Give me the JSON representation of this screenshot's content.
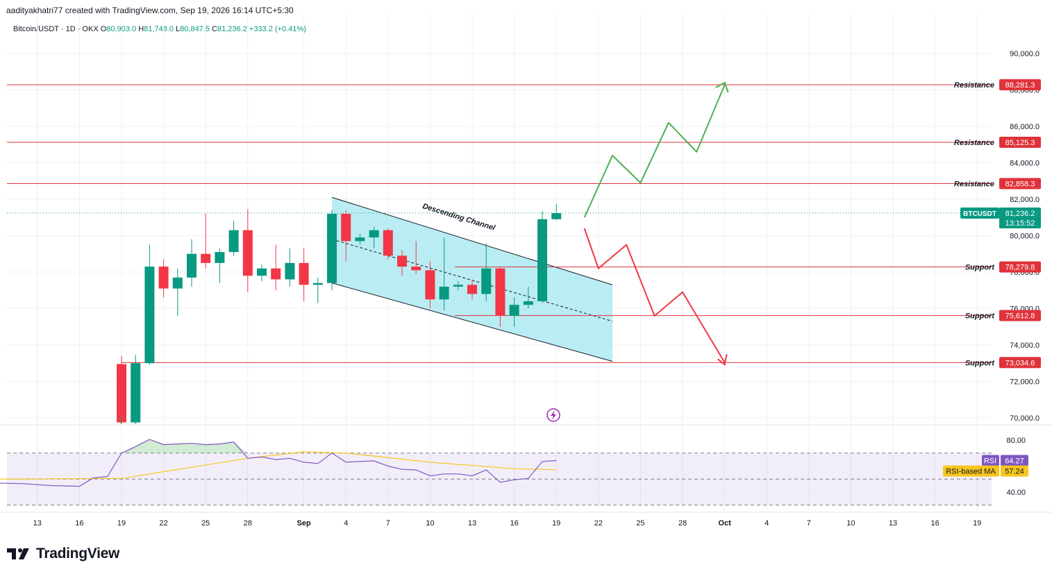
{
  "header": {
    "author_line": "aadityakhatri77 created with TradingView.com, Sep 19, 2026 16:14 UTC+5:30",
    "symbol": "Bitcoin/USDT · 1D · OKX",
    "ohlc": {
      "o_label": "O",
      "o": "80,903.0",
      "h_label": "H",
      "h": "81,748.0",
      "l_label": "L",
      "l": "80,847.5",
      "c_label": "C",
      "c": "81,236.2",
      "change": "+333.2 (+0.41%)"
    }
  },
  "colors": {
    "up": "#089981",
    "down": "#f23645",
    "level_line": "#e0323a",
    "channel_fill": "#b2ebf2",
    "bull_path": "#4caf50",
    "bear_path": "#f23645",
    "rsi_line": "#7e57c2",
    "rsi_ma": "#f7c61e"
  },
  "price_axis": {
    "ticks": [
      "90,000.0",
      "88,000.0",
      "86,000.0",
      "84,000.0",
      "82,000.0",
      "80,000.0",
      "78,000.0",
      "76,000.0",
      "74,000.0",
      "72,000.0",
      "70,000.0"
    ],
    "current": {
      "label": "BTCUSDT",
      "price": "81,236.2",
      "countdown": "13:15:52",
      "value": 81236.2
    }
  },
  "time_axis": [
    "13",
    "16",
    "19",
    "22",
    "25",
    "28",
    "Sep",
    "4",
    "7",
    "10",
    "13",
    "16",
    "19",
    "22",
    "25",
    "28",
    "Oct",
    "4",
    "7",
    "10",
    "13",
    "16",
    "19"
  ],
  "levels": [
    {
      "label": "Resistance",
      "value": 88281.3,
      "text": "88,281.3"
    },
    {
      "label": "Resistance",
      "value": 85125.3,
      "text": "85,125.3"
    },
    {
      "label": "Resistance",
      "value": 82858.3,
      "text": "82,858.3"
    },
    {
      "label": "Support",
      "value": 78279.8,
      "text": "78,279.8"
    },
    {
      "label": "Support",
      "value": 75612.8,
      "text": "75,612.8"
    },
    {
      "label": "Support",
      "value": 73034.6,
      "text": "73,034.6"
    }
  ],
  "annotations": {
    "channel_label": "Descending Channel"
  },
  "rsi": {
    "ticks": [
      "80.00",
      "40.00"
    ],
    "rsi_label": "RSI",
    "rsi_value": "64.27",
    "ma_label": "RSI-based MA",
    "ma_value": "57.24"
  },
  "logo": {
    "text": "TradingView"
  },
  "chart_data": {
    "type": "candlestick",
    "x_axis": "date (Aug 19 – Sep 19)",
    "ohlc": [
      {
        "x": "Aug 19",
        "o": 72950,
        "h": 73400,
        "l": 69650,
        "c": 69750
      },
      {
        "x": "Aug 20",
        "o": 69750,
        "h": 73450,
        "l": 69650,
        "c": 73000
      },
      {
        "x": "Aug 21",
        "o": 73000,
        "h": 79500,
        "l": 72900,
        "c": 78300
      },
      {
        "x": "Aug 22",
        "o": 78300,
        "h": 78700,
        "l": 76600,
        "c": 77100
      },
      {
        "x": "Aug 23",
        "o": 77100,
        "h": 78200,
        "l": 75600,
        "c": 77700
      },
      {
        "x": "Aug 24",
        "o": 77700,
        "h": 79800,
        "l": 77200,
        "c": 79000
      },
      {
        "x": "Aug 25",
        "o": 79000,
        "h": 81200,
        "l": 78200,
        "c": 78500
      },
      {
        "x": "Aug 26",
        "o": 78500,
        "h": 79300,
        "l": 77400,
        "c": 79100
      },
      {
        "x": "Aug 27",
        "o": 79100,
        "h": 80800,
        "l": 78900,
        "c": 80300
      },
      {
        "x": "Aug 28",
        "o": 80300,
        "h": 81450,
        "l": 76900,
        "c": 77800
      },
      {
        "x": "Aug 29",
        "o": 77800,
        "h": 78400,
        "l": 77500,
        "c": 78200
      },
      {
        "x": "Aug 30",
        "o": 78200,
        "h": 79500,
        "l": 77000,
        "c": 77600
      },
      {
        "x": "Aug 31",
        "o": 77600,
        "h": 79300,
        "l": 77200,
        "c": 78500
      },
      {
        "x": "Sep 1",
        "o": 78500,
        "h": 79300,
        "l": 76400,
        "c": 77300
      },
      {
        "x": "Sep 2",
        "o": 77300,
        "h": 77700,
        "l": 76300,
        "c": 77400
      },
      {
        "x": "Sep 3",
        "o": 77400,
        "h": 81400,
        "l": 77000,
        "c": 81200
      },
      {
        "x": "Sep 4",
        "o": 81200,
        "h": 81400,
        "l": 78600,
        "c": 79700
      },
      {
        "x": "Sep 5",
        "o": 79700,
        "h": 80100,
        "l": 79500,
        "c": 79900
      },
      {
        "x": "Sep 6",
        "o": 79900,
        "h": 80500,
        "l": 79300,
        "c": 80300
      },
      {
        "x": "Sep 7",
        "o": 80300,
        "h": 80400,
        "l": 78700,
        "c": 78900
      },
      {
        "x": "Sep 8",
        "o": 78900,
        "h": 79200,
        "l": 77800,
        "c": 78300
      },
      {
        "x": "Sep 9",
        "o": 78300,
        "h": 79700,
        "l": 77900,
        "c": 78100
      },
      {
        "x": "Sep 10",
        "o": 78100,
        "h": 78600,
        "l": 76000,
        "c": 76500
      },
      {
        "x": "Sep 11",
        "o": 76500,
        "h": 79900,
        "l": 75900,
        "c": 77200
      },
      {
        "x": "Sep 12",
        "o": 77200,
        "h": 77500,
        "l": 77000,
        "c": 77300
      },
      {
        "x": "Sep 13",
        "o": 77300,
        "h": 77600,
        "l": 76500,
        "c": 76800
      },
      {
        "x": "Sep 14",
        "o": 76800,
        "h": 79600,
        "l": 76400,
        "c": 78200
      },
      {
        "x": "Sep 15",
        "o": 78200,
        "h": 78300,
        "l": 75000,
        "c": 75600
      },
      {
        "x": "Sep 16",
        "o": 75600,
        "h": 76600,
        "l": 75000,
        "c": 76200
      },
      {
        "x": "Sep 17",
        "o": 76200,
        "h": 77200,
        "l": 76000,
        "c": 76400
      },
      {
        "x": "Sep 18",
        "o": 76400,
        "h": 81350,
        "l": 76300,
        "c": 80903
      },
      {
        "x": "Sep 19",
        "o": 80903,
        "h": 81748,
        "l": 80847.5,
        "c": 81236.2
      }
    ],
    "channel": {
      "upper": [
        {
          "x": "Sep 3",
          "y": 82100
        },
        {
          "x": "Sep 23",
          "y": 77300
        }
      ],
      "lower": [
        {
          "x": "Sep 3",
          "y": 77400
        },
        {
          "x": "Sep 23",
          "y": 73100
        }
      ],
      "mid": [
        {
          "x": "Sep 3",
          "y": 79800
        },
        {
          "x": "Sep 23",
          "y": 75300
        }
      ]
    },
    "bullish_projection": [
      {
        "x": "Sep 21",
        "y": 81000
      },
      {
        "x": "Sep 23",
        "y": 84400
      },
      {
        "x": "Sep 25",
        "y": 82900
      },
      {
        "x": "Sep 27",
        "y": 86200
      },
      {
        "x": "Sep 29",
        "y": 84600
      },
      {
        "x": "Oct 1",
        "y": 88281.3
      }
    ],
    "bearish_projection": [
      {
        "x": "Sep 21",
        "y": 80400
      },
      {
        "x": "Sep 22",
        "y": 78200
      },
      {
        "x": "Sep 24",
        "y": 79500
      },
      {
        "x": "Sep 26",
        "y": 75600
      },
      {
        "x": "Sep 28",
        "y": 76900
      },
      {
        "x": "Oct 1",
        "y": 73034.6
      }
    ],
    "rsi_series": [
      {
        "x": "Aug 10",
        "y": 47
      },
      {
        "x": "Aug 12",
        "y": 46.5
      },
      {
        "x": "Aug 14",
        "y": 45
      },
      {
        "x": "Aug 16",
        "y": 44.5
      },
      {
        "x": "Aug 17",
        "y": 51
      },
      {
        "x": "Aug 18",
        "y": 52
      },
      {
        "x": "Aug 19",
        "y": 70
      },
      {
        "x": "Aug 20",
        "y": 75
      },
      {
        "x": "Aug 21",
        "y": 80.5
      },
      {
        "x": "Aug 22",
        "y": 76.5
      },
      {
        "x": "Aug 23",
        "y": 77
      },
      {
        "x": "Aug 24",
        "y": 77.5
      },
      {
        "x": "Aug 25",
        "y": 76.5
      },
      {
        "x": "Aug 26",
        "y": 77
      },
      {
        "x": "Aug 27",
        "y": 78.5
      },
      {
        "x": "Aug 28",
        "y": 66
      },
      {
        "x": "Aug 29",
        "y": 67
      },
      {
        "x": "Aug 30",
        "y": 65
      },
      {
        "x": "Aug 31",
        "y": 66
      },
      {
        "x": "Sep 1",
        "y": 63
      },
      {
        "x": "Sep 2",
        "y": 62
      },
      {
        "x": "Sep 3",
        "y": 70
      },
      {
        "x": "Sep 4",
        "y": 63
      },
      {
        "x": "Sep 5",
        "y": 63.5
      },
      {
        "x": "Sep 6",
        "y": 64
      },
      {
        "x": "Sep 7",
        "y": 60
      },
      {
        "x": "Sep 8",
        "y": 57.5
      },
      {
        "x": "Sep 9",
        "y": 57
      },
      {
        "x": "Sep 10",
        "y": 52.5
      },
      {
        "x": "Sep 11",
        "y": 54
      },
      {
        "x": "Sep 12",
        "y": 54
      },
      {
        "x": "Sep 13",
        "y": 52.5
      },
      {
        "x": "Sep 14",
        "y": 57
      },
      {
        "x": "Sep 15",
        "y": 47.5
      },
      {
        "x": "Sep 16",
        "y": 49.5
      },
      {
        "x": "Sep 17",
        "y": 50.5
      },
      {
        "x": "Sep 18",
        "y": 63.5
      },
      {
        "x": "Sep 19",
        "y": 64.27
      }
    ],
    "rsi_ma_series": [
      {
        "x": "Aug 10",
        "y": 50
      },
      {
        "x": "Aug 19",
        "y": 50.5
      },
      {
        "x": "Aug 28",
        "y": 66
      },
      {
        "x": "Sep 1",
        "y": 71
      },
      {
        "x": "Sep 4",
        "y": 70
      },
      {
        "x": "Sep 10",
        "y": 63
      },
      {
        "x": "Sep 16",
        "y": 58
      },
      {
        "x": "Sep 19",
        "y": 57.24
      }
    ]
  }
}
